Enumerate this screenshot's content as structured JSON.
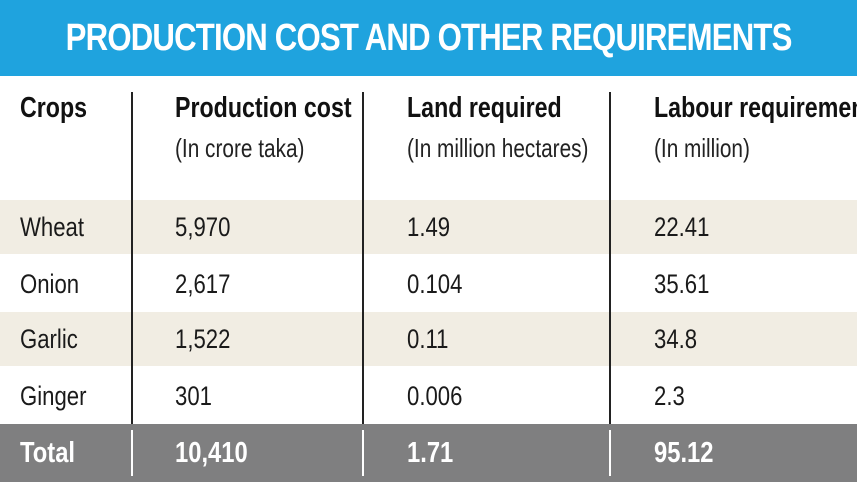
{
  "chart_data": {
    "type": "table",
    "title": "PRODUCTION COST AND OTHER REQUIREMENTS",
    "columns": [
      {
        "label": "Crops",
        "unit": ""
      },
      {
        "label": "Production cost",
        "unit": "(In crore taka)"
      },
      {
        "label": "Land required",
        "unit": "(In million hectares)"
      },
      {
        "label": "Labour requirement",
        "unit": "(In million)"
      }
    ],
    "rows": [
      [
        "Wheat",
        "5,970",
        "1.49",
        "22.41"
      ],
      [
        "Onion",
        "2,617",
        "0.104",
        "35.61"
      ],
      [
        "Garlic",
        "1,522",
        "0.11",
        "34.8"
      ],
      [
        "Ginger",
        "301",
        "0.006",
        "2.3"
      ]
    ],
    "total": [
      "Total",
      "10,410",
      "1.71",
      "95.12"
    ]
  },
  "colors": {
    "title_bg": "#1fa3de",
    "band_bg": "#f1ede3",
    "total_bg": "#7f7f80"
  }
}
